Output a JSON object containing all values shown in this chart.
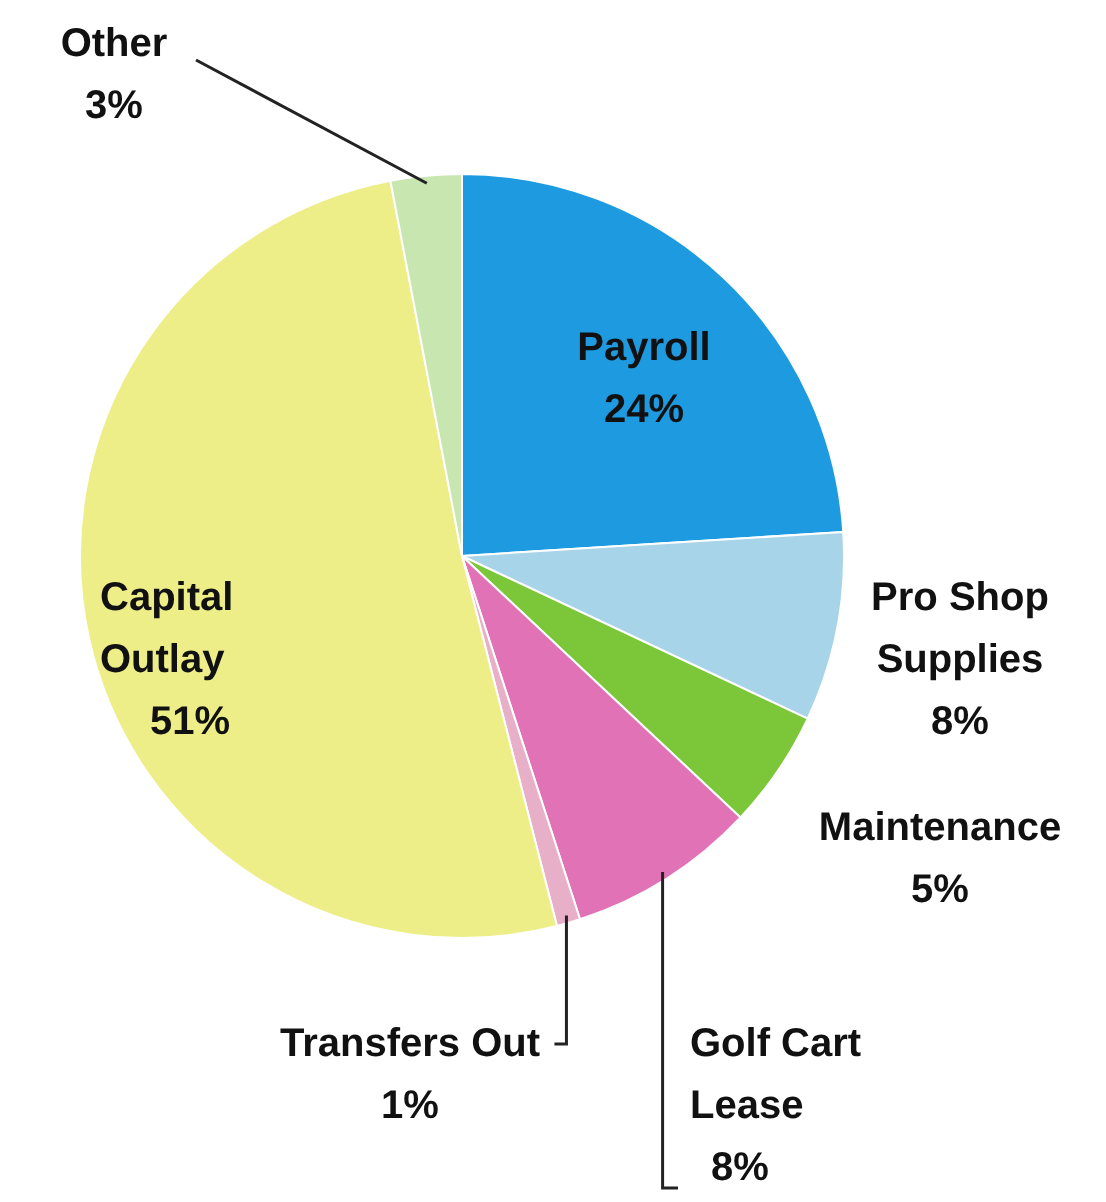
{
  "chart_data": {
    "type": "pie",
    "categories": [
      "Payroll",
      "Pro Shop Supplies",
      "Maintenance",
      "Golf Cart Lease",
      "Transfers Out",
      "Capital Outlay",
      "Other"
    ],
    "values": [
      24,
      8,
      5,
      8,
      1,
      51,
      3
    ],
    "value_labels": [
      "24%",
      "8%",
      "5%",
      "8%",
      "1%",
      "51%",
      "3%"
    ],
    "colors": [
      "#1e9be0",
      "#a8d4ea",
      "#7cc63a",
      "#e272b6",
      "#e8b0c8",
      "#eeee88",
      "#c8e6b0"
    ]
  }
}
